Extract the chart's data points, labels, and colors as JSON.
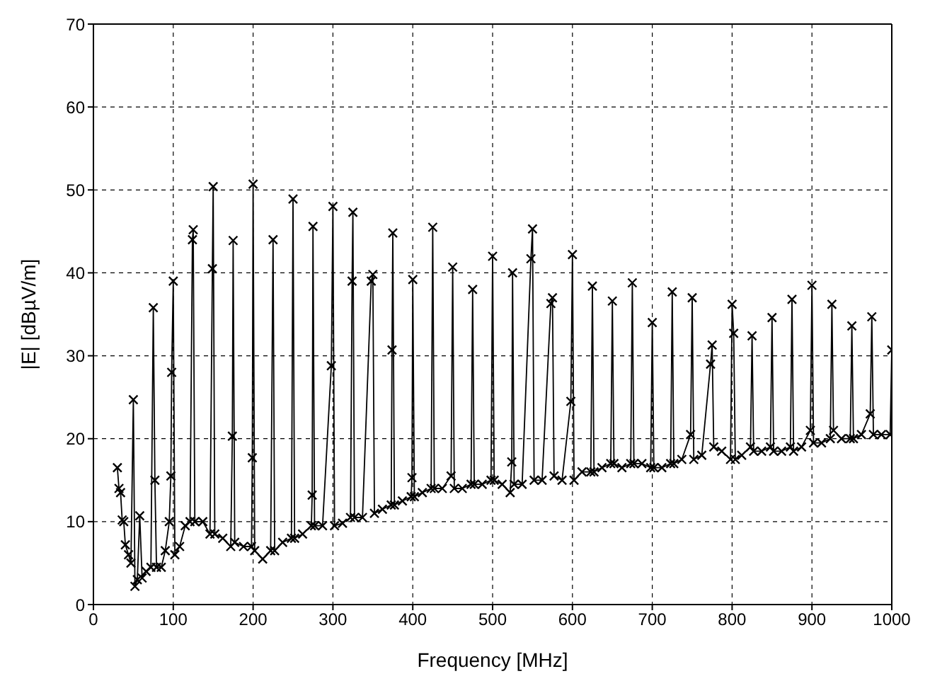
{
  "chart_data": {
    "type": "line",
    "xlabel": "Frequency [MHz]",
    "ylabel": "|E| [dBµV/m]",
    "xlim": [
      0,
      1000
    ],
    "xticks": [
      0,
      100,
      200,
      300,
      400,
      500,
      600,
      700,
      800,
      900,
      1000
    ],
    "ylim": [
      0,
      70
    ],
    "yticks": [
      0,
      10,
      20,
      30,
      40,
      50,
      60,
      70
    ],
    "grid": true,
    "marker": "cross",
    "line_style": "solid",
    "x": [
      30,
      32,
      34,
      36,
      38,
      40,
      44,
      47,
      50,
      52,
      55,
      58,
      61,
      66,
      72,
      75,
      77,
      79,
      85,
      90,
      95,
      97,
      98,
      100,
      102,
      108,
      115,
      121,
      124,
      125,
      127,
      137,
      146,
      149,
      150,
      152,
      162,
      172,
      174,
      175,
      177,
      188,
      198,
      199,
      200,
      202,
      212,
      222,
      225,
      227,
      237,
      248,
      250,
      252,
      262,
      273,
      274,
      275,
      277,
      287,
      298,
      300,
      302,
      312,
      322,
      324,
      325,
      327,
      337,
      348,
      350,
      352,
      362,
      373,
      374,
      375,
      377,
      387,
      398,
      399,
      400,
      402,
      412,
      423,
      425,
      427,
      437,
      448,
      450,
      452,
      462,
      473,
      475,
      477,
      487,
      498,
      500,
      502,
      512,
      522,
      524,
      525,
      527,
      537,
      548,
      550,
      552,
      562,
      573,
      575,
      577,
      587,
      598,
      600,
      602,
      612,
      623,
      625,
      627,
      637,
      648,
      650,
      652,
      662,
      673,
      675,
      677,
      687,
      698,
      700,
      702,
      712,
      723,
      725,
      727,
      737,
      748,
      750,
      752,
      762,
      773,
      775,
      777,
      787,
      798,
      800,
      802,
      804,
      812,
      823,
      825,
      827,
      837,
      848,
      850,
      852,
      862,
      873,
      875,
      877,
      887,
      898,
      900,
      902,
      912,
      923,
      925,
      927,
      937,
      948,
      950,
      952,
      962,
      973,
      975,
      977,
      987,
      998,
      1000
    ],
    "series": [
      {
        "color": "#000000",
        "values": [
          16.5,
          14,
          13.5,
          10.2,
          10,
          7.2,
          6,
          5,
          24.7,
          2.2,
          3,
          10.7,
          3.2,
          4,
          4.5,
          35.8,
          15,
          4.5,
          4.5,
          6.5,
          10,
          15.5,
          28,
          39,
          6,
          7,
          9.5,
          10,
          44,
          45.2,
          10,
          10,
          8.5,
          40.5,
          50.4,
          8.5,
          8,
          7,
          20.3,
          43.9,
          7.5,
          7,
          7,
          17.7,
          50.7,
          6.5,
          5.5,
          6.5,
          44,
          6.5,
          7.5,
          8,
          48.9,
          8,
          8.5,
          9.5,
          13.2,
          45.6,
          9.5,
          9.5,
          28.8,
          48,
          9.5,
          9.8,
          10.5,
          39,
          47.3,
          10.5,
          10.5,
          39,
          39.8,
          11,
          11.5,
          12,
          30.7,
          44.8,
          12,
          12.5,
          13,
          15.3,
          39.2,
          13,
          13.5,
          14,
          45.5,
          14,
          14,
          15.5,
          40.7,
          14,
          14,
          14.5,
          38,
          14.5,
          14.5,
          15,
          42,
          15,
          14.5,
          13.5,
          17.2,
          40,
          14.5,
          14.5,
          41.7,
          45.3,
          15,
          15,
          36.3,
          37,
          15.5,
          15,
          24.5,
          42.2,
          15,
          16,
          16,
          38.4,
          16,
          16.5,
          17,
          36.6,
          17,
          16.5,
          17,
          38.8,
          17,
          17,
          16.5,
          34,
          16.5,
          16.5,
          17,
          37.7,
          17,
          17.5,
          20.5,
          37,
          17.5,
          18,
          29,
          31.3,
          19,
          18.5,
          17.5,
          36.2,
          32.7,
          17.5,
          18,
          19,
          32.4,
          18.5,
          18.5,
          19,
          34.6,
          18.5,
          18.5,
          19,
          36.8,
          18.5,
          19,
          21,
          38.5,
          19.5,
          19.5,
          20,
          36.2,
          21,
          20,
          20,
          33.6,
          20,
          20.5,
          23,
          34.7,
          20.5,
          20.5,
          20.5,
          30.7
        ]
      }
    ]
  }
}
